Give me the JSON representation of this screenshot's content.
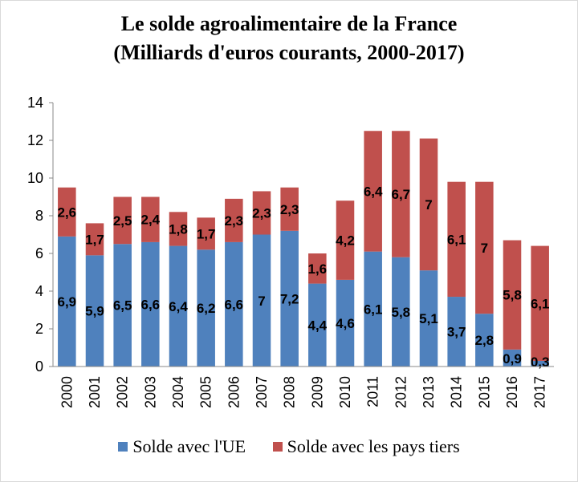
{
  "chart_data": {
    "type": "bar",
    "stacked": true,
    "title": "Le solde agroalimentaire de la France",
    "subtitle": "(Milliards d'euros courants, 2000-2017)",
    "categories": [
      "2000",
      "2001",
      "2002",
      "2003",
      "2004",
      "2005",
      "2006",
      "2007",
      "2008",
      "2009",
      "2010",
      "2011",
      "2012",
      "2013",
      "2014",
      "2015",
      "2016",
      "2017"
    ],
    "series": [
      {
        "name": "Solde avec l'UE",
        "color": "#4F81BD",
        "values": [
          6.9,
          5.9,
          6.5,
          6.6,
          6.4,
          6.2,
          6.6,
          7,
          7.2,
          4.4,
          4.6,
          6.1,
          5.8,
          5.1,
          3.7,
          2.8,
          0.9,
          0.3
        ],
        "labels": [
          "6,9",
          "5,9",
          "6,5",
          "6,6",
          "6,4",
          "6,2",
          "6,6",
          "7",
          "7,2",
          "4,4",
          "4,6",
          "6,1",
          "5,8",
          "5,1",
          "3,7",
          "2,8",
          "0,9",
          "0,3"
        ]
      },
      {
        "name": "Solde avec les pays tiers",
        "color": "#C0504D",
        "values": [
          2.6,
          1.7,
          2.5,
          2.4,
          1.8,
          1.7,
          2.3,
          2.3,
          2.3,
          1.6,
          4.2,
          6.4,
          6.7,
          7,
          6.1,
          7,
          5.8,
          6.1
        ],
        "labels": [
          "2,6",
          "1,7",
          "2,5",
          "2,4",
          "1,8",
          "1,7",
          "2,3",
          "2,3",
          "2,3",
          "1,6",
          "4,2",
          "6,4",
          "6,7",
          "7",
          "6,1",
          "7",
          "5,8",
          "6,1"
        ]
      }
    ],
    "ylim": [
      0,
      14
    ],
    "yticks": [
      "0",
      "2",
      "4",
      "6",
      "8",
      "10",
      "12",
      "14"
    ],
    "ytick_values": [
      0,
      2,
      4,
      6,
      8,
      10,
      12,
      14
    ],
    "grid": false,
    "legend_position": "bottom"
  }
}
